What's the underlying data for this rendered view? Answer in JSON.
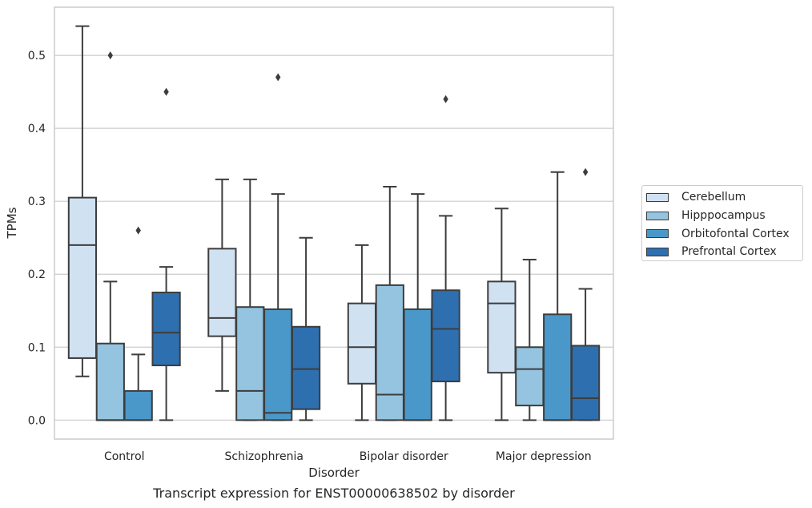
{
  "caption": "Transcript expression for ENST00000638502 by disorder",
  "chart_data": {
    "type": "box",
    "title": "",
    "xlabel": "Disorder",
    "ylabel": "TPMs",
    "ylim": [
      -0.026,
      0.566
    ],
    "yticks": [
      0.0,
      0.1,
      0.2,
      0.3,
      0.4,
      0.5
    ],
    "ytick_labels": [
      "0.0",
      "0.1",
      "0.2",
      "0.3",
      "0.4",
      "0.5"
    ],
    "grid": "horizontal",
    "legend_position": "right",
    "categories": [
      "Control",
      "Schizophrenia",
      "Bipolar disorder",
      "Major depression"
    ],
    "series": [
      {
        "name": "Cerebellum",
        "color": "#d0e1f2",
        "boxes": [
          {
            "whislo": 0.06,
            "q1": 0.085,
            "med": 0.24,
            "q3": 0.305,
            "whishi": 0.54,
            "fliers": []
          },
          {
            "whislo": 0.04,
            "q1": 0.115,
            "med": 0.14,
            "q3": 0.235,
            "whishi": 0.33,
            "fliers": []
          },
          {
            "whislo": 0.0,
            "q1": 0.05,
            "med": 0.1,
            "q3": 0.16,
            "whishi": 0.24,
            "fliers": []
          },
          {
            "whislo": 0.0,
            "q1": 0.065,
            "med": 0.16,
            "q3": 0.19,
            "whishi": 0.29,
            "fliers": []
          }
        ]
      },
      {
        "name": "Hipppocampus",
        "color": "#94c4df",
        "boxes": [
          {
            "whislo": 0.0,
            "q1": 0.0,
            "med": 0.0,
            "q3": 0.105,
            "whishi": 0.19,
            "fliers": [
              0.5
            ]
          },
          {
            "whislo": 0.0,
            "q1": 0.0,
            "med": 0.04,
            "q3": 0.155,
            "whishi": 0.33,
            "fliers": []
          },
          {
            "whislo": 0.0,
            "q1": 0.0,
            "med": 0.035,
            "q3": 0.185,
            "whishi": 0.32,
            "fliers": []
          },
          {
            "whislo": 0.0,
            "q1": 0.02,
            "med": 0.07,
            "q3": 0.1,
            "whishi": 0.22,
            "fliers": []
          }
        ]
      },
      {
        "name": "Orbitofontal Cortex",
        "color": "#4a98c9",
        "boxes": [
          {
            "whislo": 0.0,
            "q1": 0.0,
            "med": 0.0,
            "q3": 0.04,
            "whishi": 0.09,
            "fliers": [
              0.26
            ]
          },
          {
            "whislo": 0.0,
            "q1": 0.0,
            "med": 0.01,
            "q3": 0.152,
            "whishi": 0.31,
            "fliers": [
              0.47
            ]
          },
          {
            "whislo": 0.0,
            "q1": 0.0,
            "med": 0.0,
            "q3": 0.152,
            "whishi": 0.31,
            "fliers": []
          },
          {
            "whislo": 0.0,
            "q1": 0.0,
            "med": 0.0,
            "q3": 0.145,
            "whishi": 0.34,
            "fliers": []
          }
        ]
      },
      {
        "name": "Prefrontal Cortex",
        "color": "#2e6fb0",
        "boxes": [
          {
            "whislo": 0.0,
            "q1": 0.075,
            "med": 0.12,
            "q3": 0.175,
            "whishi": 0.21,
            "fliers": [
              0.45
            ]
          },
          {
            "whislo": 0.0,
            "q1": 0.015,
            "med": 0.07,
            "q3": 0.128,
            "whishi": 0.25,
            "fliers": []
          },
          {
            "whislo": 0.0,
            "q1": 0.053,
            "med": 0.125,
            "q3": 0.178,
            "whishi": 0.28,
            "fliers": [
              0.44
            ]
          },
          {
            "whislo": 0.0,
            "q1": 0.0,
            "med": 0.03,
            "q3": 0.102,
            "whishi": 0.18,
            "fliers": [
              0.34
            ]
          }
        ]
      }
    ]
  }
}
